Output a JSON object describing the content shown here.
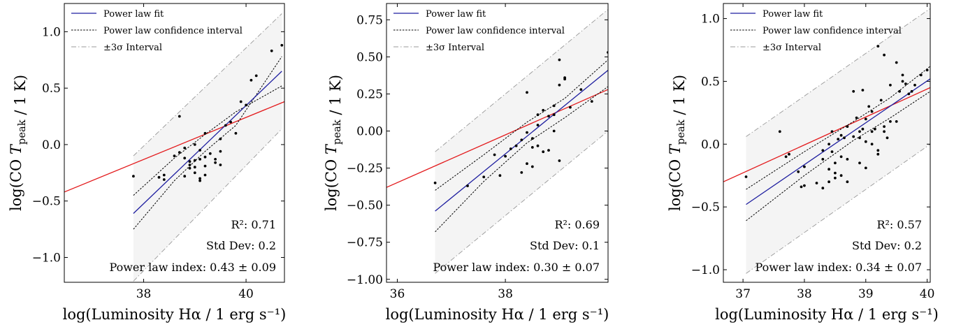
{
  "colors": {
    "fit": "#1f1fa0",
    "red_line": "#e31a1c",
    "band": "#f4f4f4",
    "points": "#000000"
  },
  "legend": {
    "fit": "Power law fit",
    "ci": "Power law confidence interval",
    "sigma": "±3σ Interval"
  },
  "chart_data": [
    {
      "type": "scatter",
      "xlabel": "log(Luminosity Hα / 1 erg s⁻¹)",
      "ylabel": "log(CO T_peak / 1 K)",
      "xlim": [
        36.45,
        40.75
      ],
      "ylim": [
        -1.22,
        1.25
      ],
      "xticks": [
        38,
        40
      ],
      "xtick_labels": [
        "38",
        "40"
      ],
      "yticks": [
        -1.0,
        -0.5,
        0.0,
        0.5,
        1.0
      ],
      "ytick_labels": [
        "−1.0",
        "−0.5",
        "0.0",
        "0.5",
        "1.0"
      ],
      "annotations": {
        "r2": "R²: 0.71",
        "std": "Std Dev: 0.2",
        "index": "Power law index: 0.43 ± 0.09"
      },
      "fit": {
        "x": [
          37.8,
          40.7
        ],
        "y": [
          -0.61,
          0.65
        ]
      },
      "ci_upper": {
        "x": [
          37.8,
          38.6,
          39.2,
          39.8,
          40.7
        ],
        "y": [
          -0.45,
          -0.12,
          0.09,
          0.29,
          0.52
        ]
      },
      "ci_lower": {
        "x": [
          37.8,
          38.6,
          39.2,
          39.8,
          40.7
        ],
        "y": [
          -0.75,
          -0.32,
          -0.06,
          0.17,
          0.78
        ]
      },
      "sigma_upper": {
        "x": [
          37.8,
          40.7
        ],
        "y": [
          -0.1,
          1.16
        ]
      },
      "sigma_lower": {
        "x": [
          37.8,
          40.7
        ],
        "y": [
          -1.21,
          0.14
        ]
      },
      "red_line": {
        "x": [
          36.45,
          40.75
        ],
        "y": [
          -0.42,
          0.38
        ]
      },
      "points": {
        "x": [
          37.8,
          38.3,
          38.4,
          38.4,
          38.6,
          38.7,
          38.8,
          38.8,
          38.9,
          38.9,
          39.0,
          39.0,
          39.1,
          39.1,
          39.2,
          39.2,
          39.3,
          39.0,
          38.8,
          38.9,
          39.1,
          39.2,
          39.4,
          39.5,
          39.5,
          39.6,
          39.7,
          39.8,
          39.9,
          40.0,
          40.1,
          40.2,
          40.5,
          40.7,
          39.5,
          39.4,
          39.1,
          39.0,
          39.2,
          38.7
        ],
        "y": [
          -0.28,
          -0.29,
          -0.27,
          -0.31,
          -0.1,
          -0.07,
          -0.12,
          -0.28,
          -0.15,
          -0.18,
          -0.25,
          -0.14,
          -0.05,
          -0.32,
          -0.11,
          -0.19,
          -0.08,
          0.0,
          -0.03,
          -0.21,
          -0.13,
          -0.27,
          -0.16,
          -0.18,
          -0.06,
          0.17,
          0.2,
          0.1,
          0.38,
          0.35,
          0.57,
          0.61,
          0.83,
          0.88,
          0.05,
          -0.13,
          -0.3,
          -0.2,
          0.1,
          0.25
        ]
      }
    },
    {
      "type": "scatter",
      "xlabel": "log(Luminosity Hα / 1 erg s⁻¹)",
      "ylabel": "log(CO T_peak / 1 K)",
      "xlim": [
        35.8,
        39.9
      ],
      "ylim": [
        -1.02,
        0.86
      ],
      "xticks": [
        36,
        38
      ],
      "xtick_labels": [
        "36",
        "38"
      ],
      "yticks": [
        -1.0,
        -0.75,
        -0.5,
        -0.25,
        0.0,
        0.25,
        0.5,
        0.75
      ],
      "ytick_labels": [
        "−1.00",
        "−0.75",
        "−0.50",
        "−0.25",
        "0.00",
        "0.25",
        "0.50",
        "0.75"
      ],
      "annotations": {
        "r2": "R²: 0.69",
        "std": "Std Dev: 0.1",
        "index": "Power law index: 0.30 ± 0.07"
      },
      "fit": {
        "x": [
          36.7,
          39.9
        ],
        "y": [
          -0.54,
          0.41
        ]
      },
      "ci_upper": {
        "x": [
          36.7,
          37.6,
          38.4,
          39.1,
          39.9
        ],
        "y": [
          -0.4,
          -0.16,
          0.06,
          0.22,
          0.48
        ]
      },
      "ci_lower": {
        "x": [
          36.7,
          37.6,
          38.4,
          39.1,
          39.9
        ],
        "y": [
          -0.68,
          -0.34,
          -0.08,
          0.09,
          0.3
        ]
      },
      "sigma_upper": {
        "x": [
          36.7,
          39.9
        ],
        "y": [
          -0.14,
          0.82
        ]
      },
      "sigma_lower": {
        "x": [
          36.7,
          39.9
        ],
        "y": [
          -0.96,
          0.0
        ]
      },
      "red_line": {
        "x": [
          35.8,
          39.9
        ],
        "y": [
          -0.38,
          0.28
        ]
      },
      "points": {
        "x": [
          36.7,
          37.3,
          37.6,
          37.8,
          37.9,
          38.0,
          38.1,
          38.2,
          38.3,
          38.4,
          38.4,
          38.5,
          38.5,
          38.6,
          38.6,
          38.7,
          38.7,
          38.8,
          38.8,
          38.9,
          38.9,
          39.0,
          39.0,
          39.1,
          39.1,
          39.2,
          39.4,
          39.6,
          39.9,
          38.4,
          38.5,
          38.9,
          38.3,
          38.6,
          39.0
        ],
        "y": [
          -0.35,
          -0.37,
          -0.31,
          -0.16,
          -0.3,
          -0.17,
          -0.12,
          -0.1,
          -0.06,
          0.26,
          -0.01,
          -0.11,
          -0.24,
          0.04,
          0.11,
          0.14,
          -0.14,
          0.1,
          -0.13,
          0.17,
          0.11,
          0.48,
          0.31,
          0.35,
          0.36,
          0.16,
          0.28,
          0.2,
          0.53,
          -0.22,
          -0.05,
          0.0,
          -0.28,
          -0.1,
          -0.2
        ]
      }
    },
    {
      "type": "scatter",
      "xlabel": "log(Luminosity Hα / 1 erg s⁻¹)",
      "ylabel": "log(CO T_peak / 1 K)",
      "xlim": [
        36.68,
        40.05
      ],
      "ylim": [
        -1.1,
        1.12
      ],
      "xticks": [
        37,
        38,
        39,
        40
      ],
      "xtick_labels": [
        "37",
        "38",
        "39",
        "40"
      ],
      "yticks": [
        -1.0,
        -0.5,
        0.0,
        0.5,
        1.0
      ],
      "ytick_labels": [
        "−1.0",
        "−0.5",
        "0.0",
        "0.5",
        "1.0"
      ],
      "annotations": {
        "r2": "R²: 0.57",
        "std": "Std Dev: 0.2",
        "index": "Power law index: 0.34 ± 0.07"
      },
      "fit": {
        "x": [
          37.05,
          40.05
        ],
        "y": [
          -0.48,
          0.52
        ]
      },
      "ci_upper": {
        "x": [
          37.05,
          38.0,
          38.8,
          39.4,
          40.05
        ],
        "y": [
          -0.36,
          -0.06,
          0.18,
          0.37,
          0.62
        ]
      },
      "ci_lower": {
        "x": [
          37.05,
          38.0,
          38.8,
          39.4,
          40.05
        ],
        "y": [
          -0.61,
          -0.25,
          0.03,
          0.21,
          0.42
        ]
      },
      "sigma_upper": {
        "x": [
          37.05,
          40.05
        ],
        "y": [
          0.06,
          1.08
        ]
      },
      "sigma_lower": {
        "x": [
          37.05,
          40.05
        ],
        "y": [
          -1.03,
          0.0
        ]
      },
      "red_line": {
        "x": [
          36.68,
          40.05
        ],
        "y": [
          -0.3,
          0.45
        ]
      },
      "points": {
        "x": [
          37.05,
          37.6,
          37.7,
          37.75,
          37.9,
          38.0,
          38.0,
          38.2,
          38.3,
          38.3,
          38.4,
          38.4,
          38.45,
          38.5,
          38.5,
          38.55,
          38.6,
          38.6,
          38.65,
          38.7,
          38.7,
          38.8,
          38.8,
          38.85,
          38.9,
          38.9,
          38.95,
          39.0,
          39.0,
          39.05,
          39.1,
          39.1,
          39.15,
          39.2,
          39.2,
          39.25,
          39.3,
          39.3,
          39.35,
          39.4,
          39.4,
          39.5,
          39.5,
          39.55,
          39.6,
          39.6,
          39.65,
          39.7,
          39.75,
          39.8,
          39.9,
          40.0,
          38.3,
          38.5,
          38.7,
          38.9,
          39.0,
          39.1,
          38.6,
          38.4,
          39.2,
          39.3,
          38.95,
          38.45,
          37.95
        ],
        "y": [
          -0.26,
          0.1,
          -0.1,
          -0.08,
          -0.22,
          -0.33,
          -0.18,
          -0.31,
          -0.12,
          -0.05,
          -0.2,
          -0.3,
          0.1,
          -0.15,
          -0.23,
          0.04,
          -0.1,
          -0.25,
          0.05,
          0.14,
          -0.12,
          0.06,
          0.42,
          0.21,
          0.1,
          -0.15,
          0.43,
          0.02,
          0.2,
          0.3,
          0.1,
          0.26,
          0.12,
          0.78,
          -0.05,
          0.35,
          0.1,
          0.71,
          0.05,
          0.18,
          0.47,
          0.65,
          0.18,
          0.42,
          0.5,
          0.55,
          0.48,
          0.4,
          0.42,
          0.47,
          0.55,
          0.59,
          -0.35,
          -0.27,
          -0.3,
          0.05,
          -0.19,
          0.0,
          0.07,
          0.0,
          -0.08,
          0.14,
          0.12,
          -0.06,
          -0.34
        ]
      }
    }
  ]
}
